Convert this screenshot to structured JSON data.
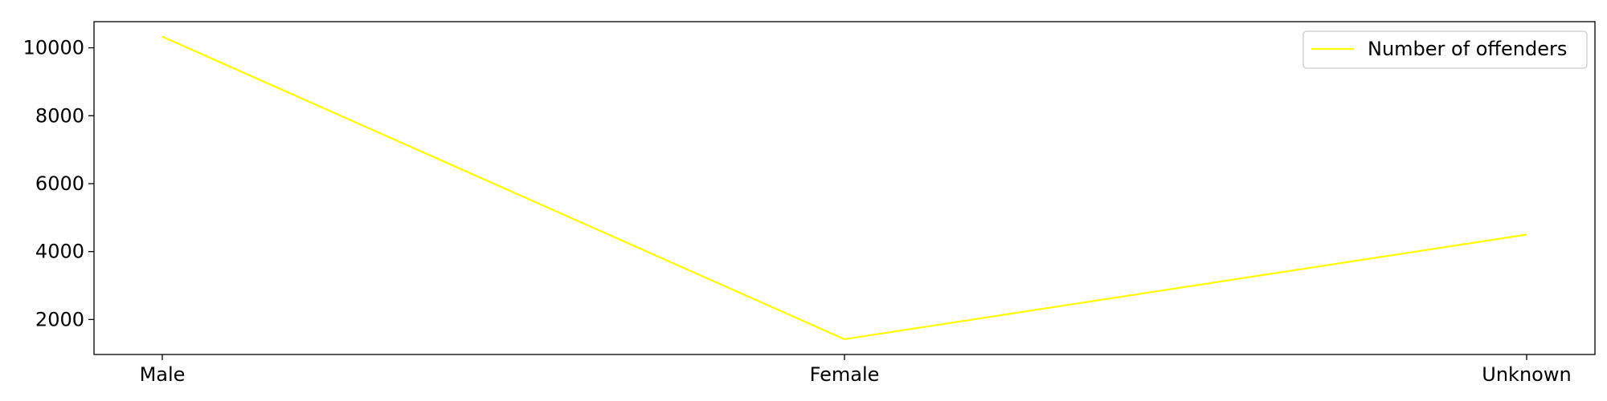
{
  "chart_data": {
    "type": "line",
    "categories": [
      "Male",
      "Female",
      "Unknown"
    ],
    "series": [
      {
        "name": "Number of offenders",
        "values": [
          10330,
          1420,
          4500
        ],
        "color": "#ffff00"
      }
    ],
    "title": "",
    "xlabel": "",
    "ylabel": "",
    "ylim": [
      970,
      10770
    ],
    "yticks": [
      2000,
      4000,
      6000,
      8000,
      10000
    ],
    "grid": false,
    "legend_position": "top-right"
  }
}
